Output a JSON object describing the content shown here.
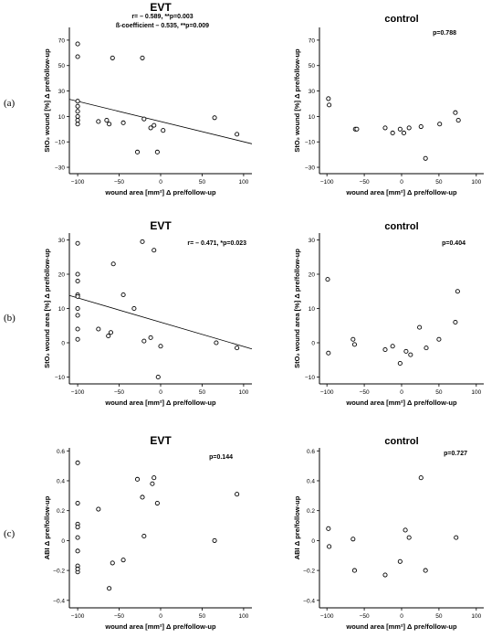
{
  "figure": {
    "row_labels": [
      "(a)",
      "(b)",
      "(c)"
    ]
  },
  "chart_data": [
    {
      "type": "scatter",
      "title": "EVT",
      "annotation": [
        "r= – 0.589, **p=0.003",
        "ß-coefficient – 0.535, **p=0.009"
      ],
      "xlabel": "wound area [mm²] Δ pre/follow-up",
      "ylabel": "StO₂ wound [%] Δ pre/follow-up",
      "xlim": [
        -110,
        110
      ],
      "ylim": [
        -35,
        80
      ],
      "xticks": [
        -100,
        -50,
        0,
        50,
        100
      ],
      "yticks": [
        -30,
        -10,
        10,
        30,
        50,
        70
      ],
      "x": [
        -100,
        -100,
        -100,
        -100,
        -100,
        -100,
        -100,
        -100,
        -75,
        -65,
        -62,
        -58,
        -45,
        -28,
        -22,
        -20,
        -12,
        -8,
        -4,
        3,
        65,
        92
      ],
      "y": [
        67,
        57,
        22,
        18,
        14,
        10,
        7,
        4,
        6,
        7,
        4,
        56,
        5,
        -18,
        56,
        8,
        1,
        3,
        -18,
        -1,
        9,
        -4
      ],
      "trendline": {
        "x": [
          -110,
          110
        ],
        "y": [
          23.5,
          -11.5
        ]
      }
    },
    {
      "type": "scatter",
      "title": "control",
      "annotation": [
        "p=0.788"
      ],
      "xlabel": "wound area [mm²] Δ pre/follow-up",
      "ylabel": "StO₂ wound [%] Δ pre/follow-up",
      "xlim": [
        -110,
        110
      ],
      "ylim": [
        -35,
        80
      ],
      "xticks": [
        -100,
        -50,
        0,
        50,
        100
      ],
      "yticks": [
        -30,
        -10,
        10,
        30,
        50,
        70
      ],
      "x": [
        -98,
        -97,
        -62,
        -60,
        -22,
        -12,
        -2,
        3,
        10,
        26,
        32,
        51,
        72,
        76
      ],
      "y": [
        24,
        19,
        0,
        0,
        1,
        -3,
        0,
        -3,
        1,
        2,
        -23,
        4,
        13,
        7
      ]
    },
    {
      "type": "scatter",
      "title": "EVT",
      "annotation": [
        "r= – 0.471, *p=0.023"
      ],
      "xlabel": "wound area [mm²] Δ pre/follow-up",
      "ylabel": "StO₂ wound area [%] Δ pre/follow-up",
      "xlim": [
        -110,
        110
      ],
      "ylim": [
        -12,
        32
      ],
      "xticks": [
        -100,
        -50,
        0,
        50,
        100
      ],
      "yticks": [
        -10,
        0,
        10,
        20,
        30
      ],
      "x": [
        -100,
        -100,
        -100,
        -100,
        -100,
        -100,
        -100,
        -100,
        -100,
        -75,
        -63,
        -60,
        -57,
        -45,
        -32,
        -22,
        -20,
        -12,
        -8,
        -3,
        0,
        67,
        92
      ],
      "y": [
        29,
        20,
        18,
        14,
        13.5,
        10,
        8,
        4,
        1,
        4,
        2,
        3,
        23,
        14,
        10,
        29.5,
        0.5,
        1.5,
        27,
        -10,
        -1,
        0,
        -1.5
      ],
      "trendline": {
        "x": [
          -110,
          110
        ],
        "y": [
          13.8,
          -1.8
        ]
      }
    },
    {
      "type": "scatter",
      "title": "control",
      "annotation": [
        "p=0.404"
      ],
      "xlabel": "wound area [mm²] Δ pre/follow-up",
      "ylabel": "StO₂ wound area [%] Δ pre/follow-up",
      "xlim": [
        -110,
        110
      ],
      "ylim": [
        -12,
        32
      ],
      "xticks": [
        -100,
        -50,
        0,
        50,
        100
      ],
      "yticks": [
        -10,
        0,
        10,
        20,
        30
      ],
      "x": [
        -99,
        -98,
        -65,
        -63,
        -22,
        -12,
        -2,
        6,
        12,
        24,
        33,
        50,
        72,
        75
      ],
      "y": [
        18.5,
        -3,
        1,
        -0.5,
        -2,
        -1,
        -6,
        -2.5,
        -3.5,
        4.5,
        -1.5,
        1,
        6,
        15
      ]
    },
    {
      "type": "scatter",
      "title": "EVT",
      "annotation": [
        "p=0.144"
      ],
      "xlabel": "wound area [mm²] Δ pre/follow-up",
      "ylabel": "ABI Δ pre/follow-up",
      "xlim": [
        -110,
        110
      ],
      "ylim": [
        -0.45,
        0.62
      ],
      "xticks": [
        -100,
        -50,
        0,
        50,
        100
      ],
      "yticks": [
        -0.4,
        -0.2,
        0,
        0.2,
        0.4,
        0.6
      ],
      "x": [
        -100,
        -100,
        -100,
        -100,
        -100,
        -100,
        -100,
        -100,
        -100,
        -75,
        -62,
        -58,
        -45,
        -28,
        -22,
        -20,
        -10,
        -8,
        -4,
        65,
        92
      ],
      "y": [
        0.52,
        0.25,
        0.11,
        0.09,
        0.02,
        -0.07,
        -0.17,
        -0.21,
        -0.19,
        0.21,
        -0.32,
        -0.15,
        -0.13,
        0.41,
        0.29,
        0.03,
        0.38,
        0.42,
        0.25,
        0.0,
        0.31
      ]
    },
    {
      "type": "scatter",
      "title": "control",
      "annotation": [
        "p=0.727"
      ],
      "xlabel": "wound area [mm²] Δ pre/follow-up",
      "ylabel": "ABI Δ pre/follow-up",
      "xlim": [
        -110,
        110
      ],
      "ylim": [
        -0.45,
        0.62
      ],
      "xticks": [
        -100,
        -50,
        0,
        50,
        100
      ],
      "yticks": [
        -0.4,
        -0.2,
        0,
        0.2,
        0.4,
        0.6
      ],
      "x": [
        -98,
        -97,
        -65,
        -63,
        -22,
        -2,
        5,
        10,
        26,
        32,
        73
      ],
      "y": [
        0.08,
        -0.04,
        0.01,
        -0.2,
        -0.23,
        -0.14,
        0.07,
        0.02,
        0.42,
        -0.2,
        0.02
      ]
    }
  ]
}
